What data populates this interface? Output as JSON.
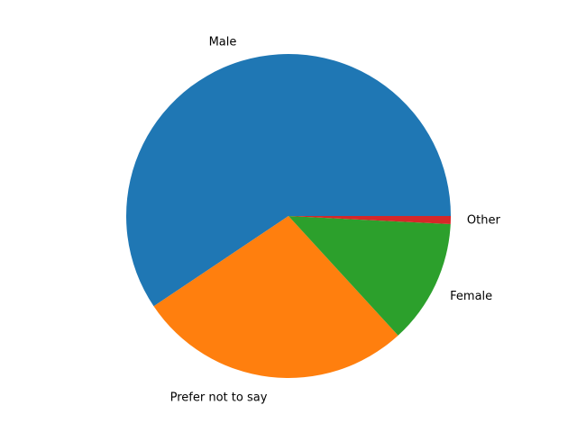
{
  "chart_data": {
    "type": "pie",
    "title": "",
    "start_angle_deg": 0,
    "direction": "counterclockwise",
    "slices": [
      {
        "label": "Male",
        "value": 59.4,
        "color": "#1f77b4"
      },
      {
        "label": "Prefer not to say",
        "value": 27.4,
        "color": "#ff7f0e"
      },
      {
        "label": "Female",
        "value": 12.4,
        "color": "#2ca02c"
      },
      {
        "label": "Other",
        "value": 0.8,
        "color": "#d62728"
      }
    ]
  }
}
